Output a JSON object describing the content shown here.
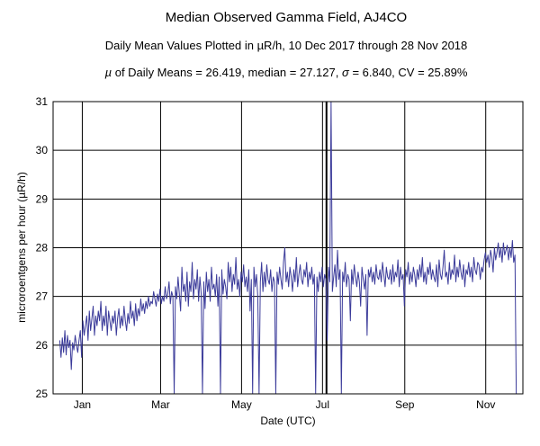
{
  "chart_data": {
    "type": "line",
    "title": "Median Observed Gamma Field, AJ4CO",
    "subtitle": "Daily Mean Values Plotted in µR/h, 10 Dec 2017 through 28 Nov 2018",
    "stats_line": {
      "mu_symbol": "µ",
      "mu_label": "of Daily Means = 26.419,",
      "median_label": "median = 27.127,",
      "sigma_symbol": "σ",
      "sigma_label": "= 6.840,",
      "cv_label": "CV = 25.89%"
    },
    "xlabel": "Date (UTC)",
    "ylabel": "microroentgens per hour (µR/h)",
    "ylim": [
      25,
      31
    ],
    "yticks": [
      25,
      26,
      27,
      28,
      29,
      30,
      31
    ],
    "x_range_days": [
      0,
      354
    ],
    "x_unit": "days since 10 Dec 2017",
    "x_ticks": [
      {
        "label": "Jan",
        "day": 22
      },
      {
        "label": "Mar",
        "day": 81
      },
      {
        "label": "May",
        "day": 142
      },
      {
        "label": "Jul",
        "day": 203
      },
      {
        "label": "Sep",
        "day": 265
      },
      {
        "label": "Nov",
        "day": 326
      }
    ],
    "grid": true,
    "marker_line_day": 206,
    "series": [
      {
        "name": "Daily mean",
        "color": "#3b3b9a",
        "values": [
          26.1,
          25.75,
          26.15,
          25.85,
          26.3,
          25.8,
          26.2,
          25.95,
          26.1,
          25.5,
          26.05,
          25.9,
          26.2,
          26.0,
          25.85,
          26.1,
          26.3,
          25.75,
          26.5,
          26.2,
          26.4,
          26.6,
          26.1,
          26.7,
          26.3,
          26.55,
          26.8,
          26.2,
          26.6,
          26.4,
          26.7,
          26.5,
          26.9,
          26.3,
          26.6,
          26.4,
          26.8,
          26.2,
          26.7,
          26.5,
          26.3,
          26.6,
          26.45,
          26.7,
          26.2,
          26.55,
          26.75,
          26.35,
          26.6,
          26.4,
          26.8,
          26.5,
          26.3,
          26.65,
          26.45,
          26.9,
          26.55,
          26.7,
          26.4,
          26.85,
          26.5,
          26.75,
          26.6,
          26.95,
          26.7,
          26.85,
          26.65,
          26.9,
          26.75,
          27.0,
          26.8,
          26.9,
          26.85,
          27.1,
          26.95,
          26.8,
          27.05,
          26.9,
          27.15,
          26.85,
          27.0,
          26.9,
          27.2,
          26.95,
          27.05,
          27.3,
          26.85,
          27.1,
          27.0,
          25.0,
          27.2,
          26.95,
          27.4,
          27.05,
          26.7,
          27.6,
          27.1,
          27.25,
          26.9,
          27.5,
          26.8,
          27.3,
          27.1,
          27.7,
          26.95,
          27.35,
          27.15,
          27.55,
          26.9,
          27.4,
          27.05,
          25.0,
          27.3,
          26.75,
          27.5,
          27.1,
          27.35,
          26.9,
          27.6,
          27.15,
          27.25,
          27.0,
          27.45,
          26.8,
          27.4,
          25.0,
          27.55,
          27.05,
          27.35,
          27.2,
          26.95,
          27.7,
          27.3,
          27.6,
          27.1,
          27.45,
          27.25,
          27.8,
          27.15,
          27.35,
          27.0,
          27.5,
          27.3,
          27.65,
          27.2,
          27.4,
          27.1,
          27.55,
          26.7,
          27.35,
          25.0,
          27.6,
          27.2,
          27.45,
          27.0,
          25.0,
          27.3,
          27.7,
          27.1,
          27.5,
          27.2,
          27.65,
          27.35,
          27.25,
          27.55,
          27.1,
          27.4,
          27.3,
          25.0,
          27.5,
          27.25,
          27.6,
          27.35,
          27.15,
          27.7,
          28.0,
          27.3,
          27.5,
          27.2,
          27.6,
          27.4,
          27.1,
          27.55,
          27.3,
          27.8,
          27.2,
          27.45,
          27.65,
          27.35,
          27.25,
          27.55,
          27.4,
          27.7,
          27.2,
          27.5,
          27.35,
          27.6,
          27.25,
          27.45,
          25.0,
          27.4,
          27.1,
          27.5,
          27.3,
          27.6,
          27.2,
          27.45,
          27.35,
          26.1,
          27.6,
          27.3,
          31.0,
          27.1,
          27.4,
          27.65,
          27.2,
          27.95,
          27.35,
          27.55,
          25.0,
          27.5,
          27.3,
          27.7,
          27.2,
          27.45,
          27.35,
          26.5,
          27.55,
          27.25,
          27.65,
          27.4,
          27.2,
          27.5,
          27.3,
          26.8,
          27.6,
          27.35,
          27.15,
          27.45,
          26.2,
          27.55,
          27.4,
          27.6,
          27.3,
          27.5,
          27.25,
          27.65,
          27.4,
          27.35,
          27.55,
          27.3,
          27.7,
          27.45,
          27.2,
          27.6,
          27.4,
          27.35,
          27.55,
          27.25,
          27.65,
          27.3,
          27.5,
          27.4,
          27.75,
          27.2,
          27.6,
          27.35,
          27.45,
          26.8,
          27.55,
          27.4,
          27.7,
          27.25,
          27.5,
          27.3,
          27.6,
          27.45,
          27.2,
          27.55,
          27.35,
          27.65,
          27.4,
          27.8,
          27.3,
          27.5,
          27.25,
          27.6,
          27.45,
          27.7,
          27.35,
          27.55,
          27.4,
          27.3,
          27.65,
          27.2,
          27.75,
          27.45,
          27.35,
          27.6,
          27.95,
          27.4,
          27.5,
          27.25,
          27.7,
          27.35,
          27.55,
          27.45,
          27.85,
          27.3,
          27.6,
          27.4,
          27.75,
          27.5,
          27.35,
          27.65,
          27.2,
          27.55,
          27.45,
          27.7,
          27.4,
          27.6,
          27.3,
          27.8,
          27.55,
          27.45,
          27.7,
          27.65,
          27.35,
          27.6,
          27.5,
          27.75,
          27.9,
          27.7,
          27.85,
          27.6,
          27.95,
          27.8,
          27.5,
          28.0,
          27.75,
          27.9,
          28.1,
          27.8,
          28.0,
          27.7,
          28.1,
          27.85,
          27.95,
          28.05,
          27.75,
          28.0,
          27.8,
          28.15,
          27.7,
          27.85,
          25.0
        ]
      }
    ]
  }
}
